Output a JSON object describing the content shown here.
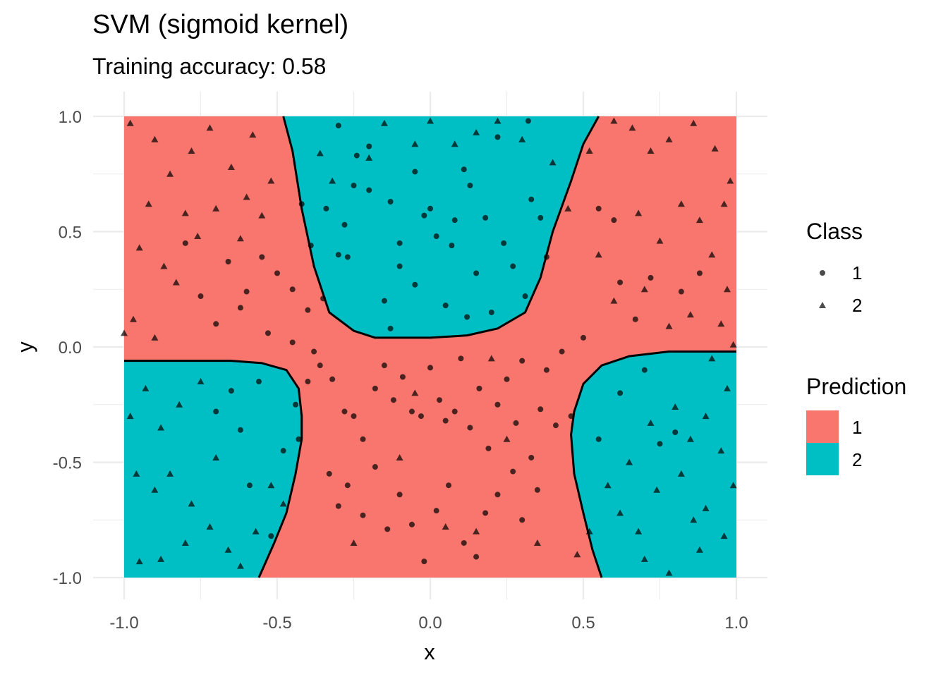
{
  "colors": {
    "class_1": "#F8766D",
    "class_2": "#00BFC4",
    "points": "#000000",
    "grid": "#EBEBEB",
    "boundary": "#000000"
  },
  "chart_data": {
    "type": "scatter",
    "title": "SVM (sigmoid kernel)",
    "subtitle": "Training accuracy: 0.58",
    "xlabel": "x",
    "ylabel": "y",
    "xlim": [
      -1,
      1
    ],
    "ylim": [
      -1,
      1
    ],
    "x_ticks": [
      "-1.0",
      "-0.5",
      "0.0",
      "0.5",
      "1.0"
    ],
    "y_ticks": [
      "1.0",
      "0.5",
      "0.0",
      "-0.5",
      "-1.0"
    ],
    "grid": true,
    "legend_placement": "right",
    "legends": [
      {
        "title": "Class",
        "shape_keys": [
          {
            "label": "1",
            "shape": "circle"
          },
          {
            "label": "2",
            "shape": "triangle"
          }
        ]
      },
      {
        "title": "Prediction",
        "fill_keys": [
          {
            "label": "1",
            "color": "#F8766D"
          },
          {
            "label": "2",
            "color": "#00BFC4"
          }
        ]
      }
    ],
    "decision_regions": {
      "background_class": "1",
      "class_2_regions": [
        {
          "position": "top-center",
          "boundary": [
            [
              -0.48,
              1.0
            ],
            [
              -0.45,
              0.85
            ],
            [
              -0.42,
              0.6
            ],
            [
              -0.38,
              0.35
            ],
            [
              -0.33,
              0.15
            ],
            [
              -0.25,
              0.07
            ],
            [
              -0.18,
              0.04
            ],
            [
              0.0,
              0.04
            ],
            [
              0.12,
              0.05
            ],
            [
              0.22,
              0.08
            ],
            [
              0.31,
              0.15
            ],
            [
              0.36,
              0.3
            ],
            [
              0.4,
              0.5
            ],
            [
              0.46,
              0.72
            ],
            [
              0.5,
              0.88
            ],
            [
              0.55,
              1.0
            ]
          ]
        },
        {
          "position": "bottom-left",
          "boundary": [
            [
              -1.0,
              -0.06
            ],
            [
              -0.65,
              -0.06
            ],
            [
              -0.55,
              -0.07
            ],
            [
              -0.47,
              -0.1
            ],
            [
              -0.43,
              -0.18
            ],
            [
              -0.42,
              -0.3
            ],
            [
              -0.42,
              -0.4
            ],
            [
              -0.44,
              -0.55
            ],
            [
              -0.47,
              -0.72
            ],
            [
              -0.51,
              -0.85
            ],
            [
              -0.56,
              -1.0
            ],
            [
              -1.0,
              -1.0
            ]
          ]
        },
        {
          "position": "bottom-right",
          "boundary": [
            [
              1.0,
              -0.02
            ],
            [
              0.78,
              -0.02
            ],
            [
              0.65,
              -0.04
            ],
            [
              0.56,
              -0.08
            ],
            [
              0.5,
              -0.16
            ],
            [
              0.47,
              -0.28
            ],
            [
              0.46,
              -0.38
            ],
            [
              0.47,
              -0.55
            ],
            [
              0.5,
              -0.72
            ],
            [
              0.53,
              -0.88
            ],
            [
              0.56,
              -1.0
            ],
            [
              1.0,
              -1.0
            ]
          ]
        }
      ]
    },
    "series": [
      {
        "name": "1",
        "shape": "circle",
        "points": [
          [
            -0.62,
            0.17
          ],
          [
            -0.66,
            0.37
          ],
          [
            -0.6,
            0.24
          ],
          [
            -0.55,
            0.39
          ],
          [
            -0.53,
            0.06
          ],
          [
            -0.5,
            0.32
          ],
          [
            -0.45,
            0.25
          ],
          [
            -0.4,
            0.16
          ],
          [
            -0.38,
            -0.02
          ],
          [
            -0.35,
            0.21
          ],
          [
            -0.42,
            0.62
          ],
          [
            -0.39,
            0.44
          ],
          [
            -0.34,
            0.6
          ],
          [
            -0.3,
            0.4
          ],
          [
            -0.28,
            0.53
          ],
          [
            -0.27,
            0.39
          ],
          [
            -0.25,
            0.7
          ],
          [
            -0.24,
            0.83
          ],
          [
            -0.2,
            0.68
          ],
          [
            -0.13,
            0.63
          ],
          [
            -0.1,
            0.45
          ],
          [
            -0.05,
            0.76
          ],
          [
            -0.02,
            0.57
          ],
          [
            0.02,
            0.48
          ],
          [
            0.07,
            0.44
          ],
          [
            0.11,
            0.77
          ],
          [
            0.13,
            0.7
          ],
          [
            0.15,
            0.32
          ],
          [
            0.18,
            0.56
          ],
          [
            0.22,
            0.91
          ],
          [
            0.24,
            0.45
          ],
          [
            0.27,
            0.35
          ],
          [
            0.31,
            0.22
          ],
          [
            0.33,
            0.64
          ],
          [
            0.36,
            0.56
          ],
          [
            0.38,
            0.39
          ],
          [
            -0.15,
            0.2
          ],
          [
            -0.1,
            0.35
          ],
          [
            -0.13,
            0.08
          ],
          [
            0.12,
            0.13
          ],
          [
            0.2,
            0.15
          ],
          [
            0.32,
            0.98
          ],
          [
            -0.3,
            0.96
          ],
          [
            -0.2,
            0.87
          ],
          [
            -0.45,
            0.02
          ],
          [
            -0.4,
            -0.15
          ],
          [
            -0.36,
            -0.08
          ],
          [
            -0.32,
            -0.14
          ],
          [
            -0.28,
            -0.28
          ],
          [
            -0.25,
            -0.3
          ],
          [
            -0.22,
            -0.4
          ],
          [
            -0.18,
            -0.18
          ],
          [
            -0.15,
            -0.08
          ],
          [
            -0.12,
            -0.23
          ],
          [
            -0.09,
            -0.13
          ],
          [
            -0.06,
            -0.28
          ],
          [
            -0.03,
            -0.3
          ],
          [
            0.0,
            -0.09
          ],
          [
            0.03,
            -0.23
          ],
          [
            0.05,
            -0.32
          ],
          [
            0.08,
            -0.28
          ],
          [
            0.1,
            -0.05
          ],
          [
            0.13,
            -0.35
          ],
          [
            0.16,
            -0.18
          ],
          [
            0.19,
            -0.44
          ],
          [
            0.22,
            -0.25
          ],
          [
            0.25,
            -0.14
          ],
          [
            0.28,
            -0.33
          ],
          [
            0.3,
            -0.06
          ],
          [
            0.33,
            -0.48
          ],
          [
            0.36,
            -0.27
          ],
          [
            0.38,
            -0.1
          ],
          [
            0.41,
            -0.34
          ],
          [
            0.43,
            -0.02
          ],
          [
            -0.33,
            -0.55
          ],
          [
            -0.3,
            -0.69
          ],
          [
            -0.27,
            -0.6
          ],
          [
            -0.22,
            -0.73
          ],
          [
            -0.18,
            -0.52
          ],
          [
            -0.14,
            -0.79
          ],
          [
            -0.1,
            -0.64
          ],
          [
            -0.06,
            -0.77
          ],
          [
            -0.02,
            -0.93
          ],
          [
            0.02,
            -0.71
          ],
          [
            0.06,
            -0.6
          ],
          [
            0.11,
            -0.85
          ],
          [
            0.15,
            -0.91
          ],
          [
            0.18,
            -0.72
          ],
          [
            0.22,
            -0.64
          ],
          [
            0.27,
            -0.54
          ],
          [
            0.3,
            -0.75
          ],
          [
            0.35,
            -0.62
          ],
          [
            -0.43,
            -0.4
          ],
          [
            -0.44,
            -0.25
          ],
          [
            -0.56,
            -0.15
          ],
          [
            -0.65,
            -0.19
          ],
          [
            -0.7,
            -0.28
          ],
          [
            -0.59,
            -0.6
          ],
          [
            -0.52,
            -0.82
          ],
          [
            -0.62,
            -0.36
          ],
          [
            -0.48,
            -0.45
          ],
          [
            0.46,
            -0.3
          ],
          [
            0.5,
            0.04
          ],
          [
            0.55,
            -0.4
          ],
          [
            0.62,
            -0.2
          ],
          [
            0.7,
            -0.1
          ],
          [
            0.75,
            -0.42
          ],
          [
            0.8,
            -0.37
          ],
          [
            0.67,
            0.12
          ],
          [
            0.72,
            0.3
          ],
          [
            0.82,
            0.24
          ],
          [
            0.88,
            0.32
          ],
          [
            0.6,
            0.55
          ],
          [
            0.62,
            0.28
          ],
          [
            0.55,
            0.6
          ],
          [
            -0.75,
            0.22
          ],
          [
            -0.7,
            0.1
          ],
          [
            -0.8,
            0.45
          ],
          [
            0.05,
            0.18
          ],
          [
            -0.05,
            0.27
          ],
          [
            0.0,
            0.6
          ],
          [
            0.08,
            0.55
          ]
        ]
      },
      {
        "name": "2",
        "shape": "triangle",
        "points": [
          [
            -0.98,
            0.97
          ],
          [
            -0.9,
            0.9
          ],
          [
            -0.85,
            0.75
          ],
          [
            -0.92,
            0.62
          ],
          [
            -0.8,
            0.58
          ],
          [
            -0.95,
            0.43
          ],
          [
            -0.87,
            0.35
          ],
          [
            -0.83,
            0.28
          ],
          [
            -0.97,
            0.12
          ],
          [
            -0.9,
            0.04
          ],
          [
            -0.78,
            0.85
          ],
          [
            -0.72,
            0.95
          ],
          [
            -0.65,
            0.78
          ],
          [
            -0.58,
            0.92
          ],
          [
            -0.52,
            0.72
          ],
          [
            -0.6,
            0.65
          ],
          [
            -0.7,
            0.6
          ],
          [
            -0.76,
            0.48
          ],
          [
            -1.0,
            0.06
          ],
          [
            -0.93,
            -0.18
          ],
          [
            -0.98,
            -0.3
          ],
          [
            -0.88,
            -0.35
          ],
          [
            -0.82,
            -0.25
          ],
          [
            -0.75,
            -0.15
          ],
          [
            -0.96,
            -0.55
          ],
          [
            -0.9,
            -0.62
          ],
          [
            -0.85,
            -0.55
          ],
          [
            -0.78,
            -0.68
          ],
          [
            -0.72,
            -0.78
          ],
          [
            -0.66,
            -0.88
          ],
          [
            -0.62,
            -0.95
          ],
          [
            -0.57,
            -0.8
          ],
          [
            -0.8,
            -0.85
          ],
          [
            -0.95,
            -0.93
          ],
          [
            -0.88,
            -0.92
          ],
          [
            -0.7,
            -0.48
          ],
          [
            0.6,
            0.98
          ],
          [
            0.66,
            0.95
          ],
          [
            0.72,
            0.85
          ],
          [
            0.78,
            0.9
          ],
          [
            0.86,
            0.97
          ],
          [
            0.93,
            0.86
          ],
          [
            0.98,
            0.72
          ],
          [
            0.96,
            0.62
          ],
          [
            0.88,
            0.55
          ],
          [
            0.82,
            0.62
          ],
          [
            0.75,
            0.46
          ],
          [
            0.68,
            0.58
          ],
          [
            0.92,
            0.4
          ],
          [
            0.97,
            0.25
          ],
          [
            0.85,
            0.14
          ],
          [
            0.78,
            0.09
          ],
          [
            0.7,
            0.25
          ],
          [
            0.95,
            0.1
          ],
          [
            0.99,
            0.01
          ],
          [
            0.92,
            -0.05
          ],
          [
            0.97,
            -0.18
          ],
          [
            0.9,
            -0.3
          ],
          [
            0.85,
            -0.4
          ],
          [
            0.8,
            -0.26
          ],
          [
            0.72,
            -0.33
          ],
          [
            0.65,
            -0.5
          ],
          [
            0.58,
            -0.6
          ],
          [
            0.62,
            -0.72
          ],
          [
            0.68,
            -0.8
          ],
          [
            0.74,
            -0.62
          ],
          [
            0.82,
            -0.55
          ],
          [
            0.9,
            -0.7
          ],
          [
            0.96,
            -0.82
          ],
          [
            0.99,
            -0.6
          ],
          [
            0.88,
            -0.88
          ],
          [
            0.78,
            -0.98
          ],
          [
            0.7,
            -0.92
          ],
          [
            0.95,
            -0.45
          ],
          [
            0.86,
            -0.75
          ],
          [
            0.22,
            0.98
          ],
          [
            0.15,
            0.93
          ],
          [
            0.08,
            0.88
          ],
          [
            0.3,
            0.9
          ],
          [
            0.45,
            0.6
          ],
          [
            0.4,
            0.8
          ],
          [
            0.52,
            0.85
          ],
          [
            -0.15,
            0.97
          ],
          [
            -0.2,
            0.82
          ],
          [
            -0.36,
            0.84
          ],
          [
            -0.32,
            0.72
          ],
          [
            0.0,
            0.98
          ],
          [
            -0.05,
            0.88
          ],
          [
            -0.55,
            0.57
          ],
          [
            -0.62,
            0.47
          ],
          [
            0.55,
            0.4
          ],
          [
            0.6,
            0.2
          ],
          [
            0.52,
            -0.8
          ],
          [
            0.48,
            -0.9
          ],
          [
            -0.48,
            -0.68
          ],
          [
            -0.52,
            -0.6
          ],
          [
            0.15,
            -0.8
          ],
          [
            -0.25,
            -0.85
          ],
          [
            0.35,
            -0.85
          ],
          [
            0.05,
            -0.78
          ],
          [
            -0.05,
            -0.2
          ],
          [
            0.2,
            -0.05
          ],
          [
            -0.1,
            -0.48
          ],
          [
            0.25,
            -0.4
          ]
        ]
      }
    ]
  }
}
